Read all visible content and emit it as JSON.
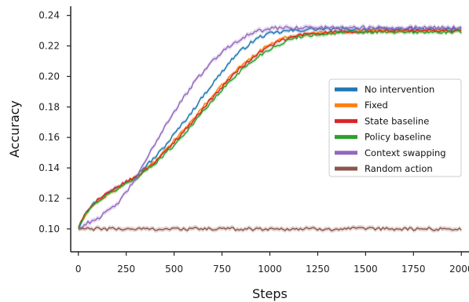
{
  "chart_data": {
    "type": "line",
    "title": "",
    "xlabel": "Steps",
    "ylabel": "Accuracy",
    "xlim": [
      -40,
      2040
    ],
    "ylim": [
      0.085,
      0.246
    ],
    "x_ticks": [
      0,
      250,
      500,
      750,
      1000,
      1250,
      1500,
      1750,
      2000
    ],
    "x_tick_labels": [
      "0",
      "250",
      "500",
      "750",
      "1000",
      "1250",
      "1500",
      "1750",
      "2000"
    ],
    "y_ticks": [
      0.1,
      0.12,
      0.14,
      0.16,
      0.18,
      0.2,
      0.22,
      0.24
    ],
    "y_tick_labels": [
      "0.10",
      "0.12",
      "0.14",
      "0.16",
      "0.18",
      "0.20",
      "0.22",
      "0.24"
    ],
    "grid": false,
    "legend_position": "center-right",
    "series": [
      {
        "name": "No intervention",
        "color": "#1f77b4",
        "x": [
          0,
          50,
          100,
          150,
          200,
          250,
          300,
          350,
          400,
          450,
          500,
          550,
          600,
          650,
          700,
          750,
          800,
          850,
          900,
          950,
          1000,
          1050,
          1100,
          1150,
          1200,
          1300,
          1400,
          1500,
          1600,
          1700,
          1800,
          1900,
          2000
        ],
        "y": [
          0.101,
          0.113,
          0.119,
          0.123,
          0.127,
          0.131,
          0.135,
          0.141,
          0.147,
          0.154,
          0.162,
          0.17,
          0.178,
          0.187,
          0.195,
          0.203,
          0.211,
          0.217,
          0.222,
          0.226,
          0.228,
          0.229,
          0.23,
          0.23,
          0.231,
          0.231,
          0.231,
          0.231,
          0.231,
          0.231,
          0.231,
          0.231,
          0.231
        ]
      },
      {
        "name": "Fixed",
        "color": "#ff7f0e",
        "x": [
          0,
          50,
          100,
          150,
          200,
          250,
          300,
          350,
          400,
          450,
          500,
          550,
          600,
          650,
          700,
          750,
          800,
          850,
          900,
          950,
          1000,
          1050,
          1100,
          1150,
          1200,
          1300,
          1400,
          1500,
          1600,
          1700,
          1800,
          1900,
          2000
        ],
        "y": [
          0.101,
          0.112,
          0.118,
          0.122,
          0.126,
          0.13,
          0.134,
          0.139,
          0.144,
          0.151,
          0.158,
          0.165,
          0.172,
          0.18,
          0.187,
          0.194,
          0.201,
          0.207,
          0.212,
          0.217,
          0.221,
          0.224,
          0.226,
          0.227,
          0.228,
          0.229,
          0.229,
          0.23,
          0.23,
          0.23,
          0.23,
          0.23,
          0.23
        ]
      },
      {
        "name": "State baseline",
        "color": "#d62728",
        "x": [
          0,
          50,
          100,
          150,
          200,
          250,
          300,
          350,
          400,
          450,
          500,
          550,
          600,
          650,
          700,
          750,
          800,
          850,
          900,
          950,
          1000,
          1050,
          1100,
          1150,
          1200,
          1300,
          1400,
          1500,
          1600,
          1700,
          1800,
          1900,
          2000
        ],
        "y": [
          0.101,
          0.113,
          0.119,
          0.123,
          0.127,
          0.131,
          0.134,
          0.139,
          0.144,
          0.15,
          0.157,
          0.164,
          0.171,
          0.179,
          0.186,
          0.193,
          0.2,
          0.206,
          0.211,
          0.216,
          0.22,
          0.223,
          0.225,
          0.227,
          0.228,
          0.229,
          0.229,
          0.229,
          0.23,
          0.23,
          0.23,
          0.23,
          0.23
        ]
      },
      {
        "name": "Policy baseline",
        "color": "#2ca02c",
        "x": [
          0,
          50,
          100,
          150,
          200,
          250,
          300,
          350,
          400,
          450,
          500,
          550,
          600,
          650,
          700,
          750,
          800,
          850,
          900,
          950,
          1000,
          1050,
          1100,
          1150,
          1200,
          1300,
          1400,
          1500,
          1600,
          1700,
          1800,
          1900,
          2000
        ],
        "y": [
          0.101,
          0.112,
          0.118,
          0.122,
          0.126,
          0.13,
          0.133,
          0.138,
          0.143,
          0.149,
          0.155,
          0.162,
          0.169,
          0.177,
          0.184,
          0.191,
          0.198,
          0.204,
          0.209,
          0.214,
          0.218,
          0.221,
          0.224,
          0.226,
          0.227,
          0.228,
          0.229,
          0.229,
          0.229,
          0.229,
          0.229,
          0.229,
          0.229
        ]
      },
      {
        "name": "Context swapping",
        "color": "#9467bd",
        "x": [
          0,
          50,
          100,
          150,
          200,
          250,
          300,
          350,
          400,
          450,
          500,
          550,
          600,
          650,
          700,
          750,
          800,
          850,
          900,
          950,
          1000,
          1050,
          1100,
          1150,
          1200,
          1300,
          1400,
          1500,
          1600,
          1700,
          1800,
          1900,
          2000
        ],
        "y": [
          0.1,
          0.104,
          0.107,
          0.111,
          0.116,
          0.124,
          0.133,
          0.144,
          0.156,
          0.167,
          0.177,
          0.186,
          0.195,
          0.203,
          0.21,
          0.216,
          0.221,
          0.225,
          0.228,
          0.23,
          0.231,
          0.232,
          0.232,
          0.232,
          0.232,
          0.232,
          0.232,
          0.232,
          0.232,
          0.232,
          0.232,
          0.232,
          0.232
        ]
      },
      {
        "name": "Random action",
        "color": "#8c564b",
        "x": [
          0,
          50,
          100,
          150,
          200,
          250,
          300,
          350,
          400,
          450,
          500,
          550,
          600,
          650,
          700,
          750,
          800,
          850,
          900,
          950,
          1000,
          1050,
          1100,
          1150,
          1200,
          1300,
          1400,
          1500,
          1600,
          1700,
          1800,
          1900,
          2000
        ],
        "y": [
          0.1,
          0.1,
          0.1,
          0.1,
          0.1,
          0.1,
          0.1,
          0.1,
          0.1,
          0.1,
          0.1,
          0.1,
          0.1,
          0.1,
          0.1,
          0.1,
          0.1,
          0.1,
          0.1,
          0.1,
          0.1,
          0.1,
          0.1,
          0.1,
          0.1,
          0.1,
          0.1,
          0.1,
          0.1,
          0.1,
          0.1,
          0.1,
          0.1
        ]
      }
    ]
  }
}
